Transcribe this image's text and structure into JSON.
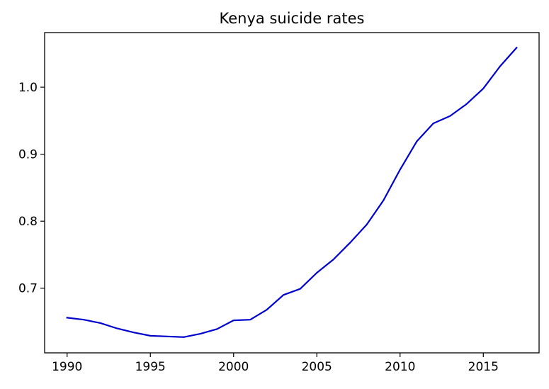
{
  "chart_data": {
    "type": "line",
    "title": "Kenya suicide rates",
    "xlabel": "",
    "ylabel": "",
    "xlim": [
      1988.65,
      2018.35
    ],
    "ylim": [
      0.6035,
      1.0815
    ],
    "x_ticks": [
      1990,
      1995,
      2000,
      2005,
      2010,
      2015
    ],
    "x_tick_labels": [
      "1990",
      "1995",
      "2000",
      "2005",
      "2010",
      "2015"
    ],
    "y_ticks": [
      0.7,
      0.8,
      0.9,
      1.0
    ],
    "y_tick_labels": [
      "0.7",
      "0.8",
      "0.9",
      "1.0"
    ],
    "grid": false,
    "series": [
      {
        "color": "#0000cd",
        "x": [
          1990,
          1991,
          1992,
          1993,
          1994,
          1995,
          1996,
          1997,
          1998,
          1999,
          2000,
          2001,
          2002,
          2003,
          2004,
          2005,
          2006,
          2007,
          2008,
          2009,
          2010,
          2011,
          2012,
          2013,
          2014,
          2015,
          2016,
          2017
        ],
        "y": [
          0.656,
          0.653,
          0.648,
          0.64,
          0.634,
          0.629,
          0.628,
          0.627,
          0.632,
          0.639,
          0.652,
          0.653,
          0.668,
          0.69,
          0.699,
          0.723,
          0.743,
          0.768,
          0.795,
          0.831,
          0.877,
          0.919,
          0.946,
          0.957,
          0.975,
          0.998,
          1.031,
          1.059
        ]
      }
    ]
  }
}
